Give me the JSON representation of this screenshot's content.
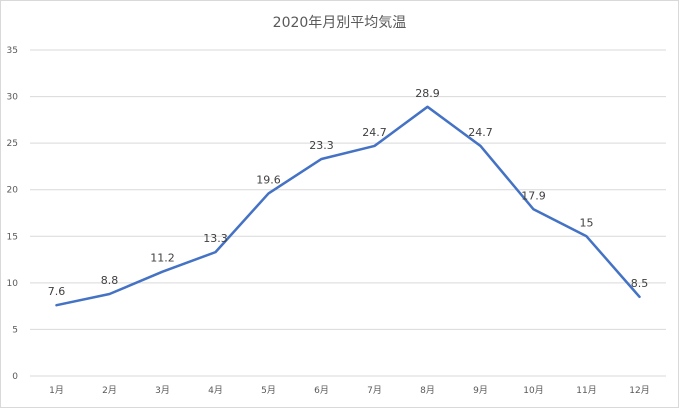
{
  "chart_data": {
    "type": "line",
    "title": "2020年月別平均気温",
    "categories": [
      "1月",
      "2月",
      "3月",
      "4月",
      "5月",
      "6月",
      "7月",
      "8月",
      "9月",
      "10月",
      "11月",
      "12月"
    ],
    "series": [
      {
        "values": [
          7.6,
          8.8,
          11.2,
          13.3,
          19.6,
          23.3,
          24.7,
          28.9,
          24.7,
          17.9,
          15,
          8.5
        ]
      }
    ],
    "data_labels": [
      "7.6",
      "8.8",
      "11.2",
      "13.3",
      "19.6",
      "23.3",
      "24.7",
      "28.9",
      "24.7",
      "17.9",
      "15",
      "8.5"
    ],
    "yticks": [
      "0",
      "5",
      "10",
      "15",
      "20",
      "25",
      "30",
      "35"
    ],
    "ylim": [
      0,
      35
    ],
    "grid": true,
    "legend": "none",
    "line_color": "#4472c4",
    "grid_color": "#d9d9d9"
  }
}
